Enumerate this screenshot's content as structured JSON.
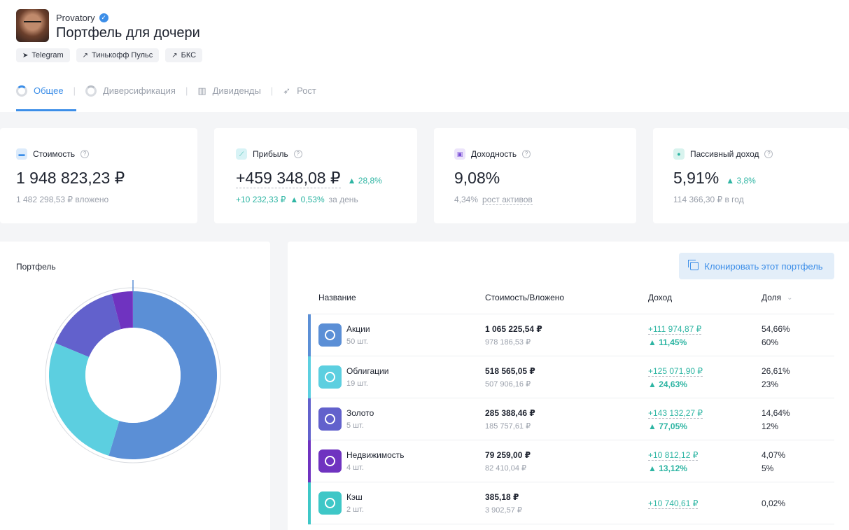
{
  "header": {
    "author": "Provatory",
    "title": "Портфель для дочери",
    "links": [
      {
        "label": "Telegram",
        "icon": "telegram-icon"
      },
      {
        "label": "Тинькофф Пульс",
        "icon": "external-link-icon"
      },
      {
        "label": "БКС",
        "icon": "external-link-icon"
      }
    ]
  },
  "tabs": [
    {
      "label": "Общее",
      "active": true,
      "icon": "pie-icon"
    },
    {
      "label": "Диверсификация",
      "active": false,
      "icon": "pie-icon"
    },
    {
      "label": "Дивиденды",
      "active": false,
      "icon": "bar-chart-icon"
    },
    {
      "label": "Рост",
      "active": false,
      "icon": "rocket-icon"
    }
  ],
  "stats": {
    "cost": {
      "label": "Стоимость",
      "value": "1 948 823,23 ₽",
      "sub": "1 482 298,53 ₽ вложено"
    },
    "profit": {
      "label": "Прибыль",
      "value": "+459 348,08 ₽",
      "change": "28,8%",
      "day_abs": "+10 232,33 ₽",
      "day_pct": "0,53%",
      "day_suffix": "за день"
    },
    "yield": {
      "label": "Доходность",
      "value": "9,08%",
      "sub_pct": "4,34%",
      "sub_label": "рост активов"
    },
    "passive": {
      "label": "Пассивный доход",
      "value": "5,91%",
      "change": "3,8%",
      "sub": "114 366,30 ₽ в год"
    }
  },
  "portfolio": {
    "title": "Портфель",
    "clone_button": "Клонировать этот портфель",
    "columns": {
      "name": "Название",
      "cost": "Стоимость/Вложено",
      "income": "Доход",
      "share": "Доля"
    }
  },
  "colors": {
    "accent": "#3c8ee8",
    "green": "#2eb5a3",
    "stocks": "#5b8fd6",
    "bonds": "#5ccfe0",
    "gold": "#6261cc",
    "realty": "#6f33c0",
    "cash": "#3ec7c7"
  },
  "assets": [
    {
      "name": "Акции",
      "count": "50 шт.",
      "cost": "1 065 225,54 ₽",
      "invested": "978 186,53 ₽",
      "income": "+111 974,87 ₽",
      "income_pct": "11,45%",
      "share": "54,66%",
      "target": "60%",
      "share_value": 54.66,
      "target_value": 60
    },
    {
      "name": "Облигации",
      "count": "19 шт.",
      "cost": "518 565,05 ₽",
      "invested": "507 906,16 ₽",
      "income": "+125 071,90 ₽",
      "income_pct": "24,63%",
      "share": "26,61%",
      "target": "23%",
      "share_value": 26.61,
      "target_value": 23
    },
    {
      "name": "Золото",
      "count": "5 шт.",
      "cost": "285 388,46 ₽",
      "invested": "185 757,61 ₽",
      "income": "+143 132,27 ₽",
      "income_pct": "77,05%",
      "share": "14,64%",
      "target": "12%",
      "share_value": 14.64,
      "target_value": 12
    },
    {
      "name": "Недвижимость",
      "count": "4 шт.",
      "cost": "79 259,00 ₽",
      "invested": "82 410,04 ₽",
      "income": "+10 812,12 ₽",
      "income_pct": "13,12%",
      "share": "4,07%",
      "target": "5%",
      "share_value": 4.07,
      "target_value": 5
    },
    {
      "name": "Кэш",
      "count": "2 шт.",
      "cost": "385,18 ₽",
      "invested": "3 902,57 ₽",
      "income": "+10 740,61 ₽",
      "income_pct": "",
      "share": "0,02%",
      "target": "",
      "share_value": 0.02,
      "target_value": 0
    }
  ]
}
